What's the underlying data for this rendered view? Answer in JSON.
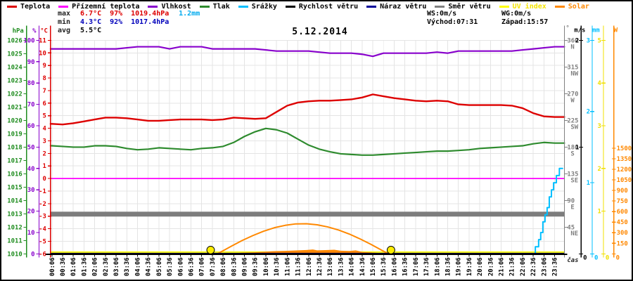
{
  "title": "5.12.2014",
  "x_axis_label": "čas",
  "legend": {
    "items": [
      {
        "label": "Teplota",
        "color": "#dd0000",
        "label_color": "#000000"
      },
      {
        "label": "Přízemní teplota",
        "color": "#ff00ff",
        "label_color": "#000000"
      },
      {
        "label": "Vlhkost",
        "color": "#8800cc",
        "label_color": "#000000"
      },
      {
        "label": "Tlak",
        "color": "#2e8b2e",
        "label_color": "#000000"
      },
      {
        "label": "Srážky",
        "color": "#00bfff",
        "label_color": "#000000"
      },
      {
        "label": "Rychlost větru",
        "color": "#000000",
        "label_color": "#000000"
      },
      {
        "label": "Náraz větru",
        "color": "#000099",
        "label_color": "#000000"
      },
      {
        "label": "Směr větru",
        "color": "#808080",
        "label_color": "#000000"
      },
      {
        "label": "UV index",
        "color": "#ffff00",
        "label_color": "#f5e500"
      },
      {
        "label": "Solar",
        "color": "#ff8800",
        "label_color": "#ff8800"
      }
    ]
  },
  "stats": {
    "max_label": "max",
    "max_temp": "6.7°C",
    "max_humidity": "97%",
    "max_pressure": "1019.4hPa",
    "max_rain": "1.2mm",
    "min_label": "min",
    "min_temp": "4.3°C",
    "min_humidity": "92%",
    "min_pressure": "1017.4hPa",
    "avg_label": "avg",
    "avg_temp": "5.5°C"
  },
  "wind_info": {
    "ws": "WS:0m/s",
    "wg": "WG:0m/s",
    "sunrise": "Východ:07:31",
    "sunset": "Západ:15:57"
  },
  "chart_data": {
    "type": "line",
    "title": "5.12.2014",
    "xlabel": "čas",
    "grid": true,
    "x_tick_labels": [
      "00:06",
      "00:36",
      "01:06",
      "01:36",
      "02:06",
      "02:36",
      "03:06",
      "03:36",
      "04:06",
      "04:36",
      "05:06",
      "05:36",
      "06:06",
      "06:36",
      "07:06",
      "07:36",
      "08:06",
      "08:36",
      "09:06",
      "09:36",
      "10:06",
      "10:36",
      "11:06",
      "11:36",
      "12:06",
      "12:36",
      "13:06",
      "13:36",
      "14:06",
      "14:36",
      "15:06",
      "15:36",
      "16:06",
      "16:36",
      "17:06",
      "17:36",
      "18:06",
      "18:36",
      "19:06",
      "19:36",
      "20:06",
      "20:36",
      "21:06",
      "21:36",
      "22:06",
      "22:36",
      "23:06",
      "23:36"
    ],
    "axes": {
      "left": [
        {
          "name": "pressure",
          "header": "hPa",
          "color": "#1e8c1e",
          "min": 1010,
          "max": 1026,
          "tick_step": 1
        },
        {
          "name": "humidity",
          "header": "%",
          "color": "#8800cc",
          "min": 0,
          "max": 100,
          "tick_step": 10
        },
        {
          "name": "temperature",
          "header": "°C",
          "color": "#dd0000",
          "min": -6,
          "max": 11,
          "tick_step": 1
        }
      ],
      "right": [
        {
          "name": "wind-direction",
          "header": "°",
          "color": "#808080",
          "min": 0,
          "max": 360,
          "tick_step": 45,
          "cardinals": {
            "45": "NE",
            "90": "E",
            "135": "SE",
            "180": "S",
            "225": "SW",
            "270": "W",
            "315": "NW",
            "360": "N"
          }
        },
        {
          "name": "wind-speed",
          "header": "m/s",
          "color": "#000000",
          "min": 0,
          "max": 2,
          "tick_step": 1
        },
        {
          "name": "rain",
          "header": "mm",
          "color": "#00bfff",
          "min": 0,
          "max": 3,
          "tick_step": 1
        },
        {
          "name": "uv",
          "header": "",
          "color": "#f0e000",
          "min": 0,
          "max": 5,
          "tick_step": 1
        },
        {
          "name": "solar",
          "header": "W",
          "color": "#ff8800",
          "min": 0,
          "max": 1500,
          "tick_step": 150,
          "axis_max": 3030
        }
      ]
    },
    "series": {
      "temperature_c": [
        4.35,
        4.3,
        4.4,
        4.55,
        4.7,
        4.85,
        4.85,
        4.8,
        4.7,
        4.6,
        4.6,
        4.65,
        4.7,
        4.7,
        4.7,
        4.65,
        4.7,
        4.85,
        4.8,
        4.75,
        4.8,
        5.3,
        5.8,
        6.05,
        6.15,
        6.2,
        6.2,
        6.25,
        6.3,
        6.45,
        6.7,
        6.55,
        6.4,
        6.3,
        6.2,
        6.15,
        6.2,
        6.15,
        5.9,
        5.85,
        5.85,
        5.85,
        5.85,
        5.8,
        5.6,
        5.2,
        4.95,
        4.9
      ],
      "humidity_pct": [
        96,
        96,
        96,
        96,
        96,
        96,
        96,
        96.5,
        97,
        97,
        97,
        96,
        97,
        97,
        97,
        96,
        96,
        96,
        96,
        96,
        95.5,
        95,
        95,
        95,
        95,
        94.5,
        94,
        94,
        94,
        93.5,
        92.5,
        94,
        94,
        94,
        94,
        94,
        94.5,
        94,
        95,
        95,
        95,
        95,
        95,
        95,
        95.5,
        96,
        96.5,
        97
      ],
      "pressure_hpa": [
        1018.1,
        1018.05,
        1018.0,
        1018.0,
        1018.1,
        1018.1,
        1018.05,
        1017.9,
        1017.8,
        1017.85,
        1017.95,
        1017.9,
        1017.85,
        1017.8,
        1017.9,
        1017.95,
        1018.05,
        1018.35,
        1018.8,
        1019.15,
        1019.4,
        1019.3,
        1019.05,
        1018.6,
        1018.15,
        1017.85,
        1017.65,
        1017.5,
        1017.45,
        1017.4,
        1017.4,
        1017.45,
        1017.5,
        1017.55,
        1017.6,
        1017.65,
        1017.7,
        1017.7,
        1017.75,
        1017.8,
        1017.9,
        1017.95,
        1018.0,
        1018.05,
        1018.1,
        1018.25,
        1018.35,
        1018.3
      ],
      "ground_temperature_c": 0,
      "wind_speed_ms": 0,
      "wind_gust_ms": 0,
      "uv_index": 0,
      "wind_direction_deg": 67,
      "rain_cumulative_mm": [
        [
          0.1,
          0
        ],
        [
          22.55,
          0
        ],
        [
          22.7,
          0.1
        ],
        [
          22.85,
          0.2
        ],
        [
          22.95,
          0.3
        ],
        [
          23.05,
          0.45
        ],
        [
          23.15,
          0.55
        ],
        [
          23.25,
          0.65
        ],
        [
          23.35,
          0.8
        ],
        [
          23.45,
          0.9
        ],
        [
          23.55,
          1.0
        ],
        [
          23.68,
          1.1
        ],
        [
          23.82,
          1.2
        ],
        [
          23.97,
          1.2
        ]
      ],
      "solar_theoretical_w": [
        [
          7.83,
          0
        ],
        [
          8.0,
          28
        ],
        [
          8.5,
          111
        ],
        [
          9.0,
          190
        ],
        [
          9.5,
          261
        ],
        [
          10.0,
          322
        ],
        [
          10.5,
          371
        ],
        [
          11.0,
          405
        ],
        [
          11.5,
          425
        ],
        [
          12.0,
          427
        ],
        [
          12.5,
          413
        ],
        [
          13.0,
          382
        ],
        [
          13.5,
          339
        ],
        [
          14.0,
          281
        ],
        [
          14.5,
          213
        ],
        [
          15.0,
          137
        ],
        [
          15.5,
          55
        ],
        [
          15.83,
          0
        ]
      ],
      "solar_measured_w": [
        [
          8.4,
          0
        ],
        [
          8.5,
          8
        ],
        [
          9.0,
          18
        ],
        [
          9.5,
          22
        ],
        [
          10.0,
          30
        ],
        [
          10.5,
          38
        ],
        [
          11.0,
          42
        ],
        [
          11.5,
          48
        ],
        [
          12.0,
          55
        ],
        [
          12.3,
          62
        ],
        [
          12.5,
          50
        ],
        [
          13.0,
          55
        ],
        [
          13.3,
          58
        ],
        [
          13.6,
          45
        ],
        [
          14.0,
          40
        ],
        [
          14.3,
          50
        ],
        [
          14.6,
          28
        ],
        [
          15.0,
          22
        ],
        [
          15.5,
          10
        ],
        [
          15.8,
          0
        ]
      ],
      "sun_marker_hours": [
        7.52,
        15.95
      ]
    }
  }
}
